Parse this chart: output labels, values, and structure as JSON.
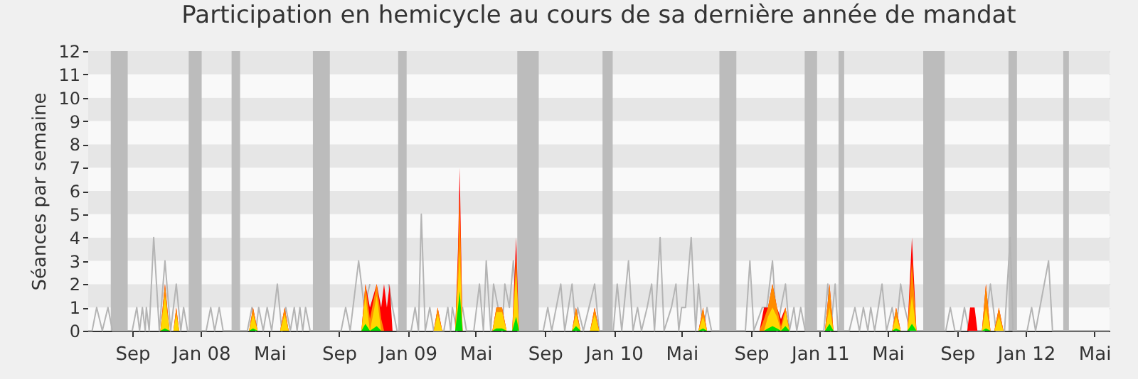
{
  "chart_data": {
    "type": "area",
    "title": "Participation en hemicycle au cours de sa dernière année de mandat",
    "ylabel": "Séances par semaine",
    "xlim": [
      "2007-06-15",
      "2012-05-28"
    ],
    "xticks": [
      {
        "value": "2007-09-01",
        "label": "Sep"
      },
      {
        "value": "2008-01-01",
        "label": "Jan 08"
      },
      {
        "value": "2008-05-01",
        "label": "Mai"
      },
      {
        "value": "2008-09-01",
        "label": "Sep"
      },
      {
        "value": "2009-01-01",
        "label": "Jan 09"
      },
      {
        "value": "2009-05-01",
        "label": "Mai"
      },
      {
        "value": "2009-09-01",
        "label": "Sep"
      },
      {
        "value": "2010-01-01",
        "label": "Jan 10"
      },
      {
        "value": "2010-05-01",
        "label": "Mai"
      },
      {
        "value": "2010-09-01",
        "label": "Sep"
      },
      {
        "value": "2011-01-01",
        "label": "Jan 11"
      },
      {
        "value": "2011-05-01",
        "label": "Mai"
      },
      {
        "value": "2011-09-01",
        "label": "Sep"
      },
      {
        "value": "2012-01-01",
        "label": "Jan 12"
      },
      {
        "value": "2012-05-01",
        "label": "Mai"
      }
    ],
    "ylim": [
      0,
      12
    ],
    "yticks": [
      0,
      1,
      2,
      3,
      4,
      5,
      6,
      7,
      8,
      9,
      10,
      11,
      12
    ],
    "grid": "y",
    "bands": [
      {
        "axis": "x",
        "from": "2007-07-25",
        "to": "2007-08-24",
        "color": "#bcbcbc"
      },
      {
        "axis": "x",
        "from": "2007-12-10",
        "to": "2008-01-02",
        "color": "#bcbcbc"
      },
      {
        "axis": "x",
        "from": "2008-02-24",
        "to": "2008-03-10",
        "color": "#bcbcbc"
      },
      {
        "axis": "x",
        "from": "2008-07-17",
        "to": "2008-08-16",
        "color": "#bcbcbc"
      },
      {
        "axis": "x",
        "from": "2008-12-15",
        "to": "2008-12-30",
        "color": "#bcbcbc"
      },
      {
        "axis": "x",
        "from": "2009-07-14",
        "to": "2009-08-21",
        "color": "#bcbcbc"
      },
      {
        "axis": "x",
        "from": "2009-12-12",
        "to": "2009-12-30",
        "color": "#bcbcbc"
      },
      {
        "axis": "x",
        "from": "2010-07-07",
        "to": "2010-08-06",
        "color": "#bcbcbc"
      },
      {
        "axis": "x",
        "from": "2010-12-05",
        "to": "2010-12-27",
        "color": "#bcbcbc"
      },
      {
        "axis": "x",
        "from": "2011-02-03",
        "to": "2011-02-13",
        "color": "#bcbcbc"
      },
      {
        "axis": "x",
        "from": "2011-07-03",
        "to": "2011-08-10",
        "color": "#bcbcbc"
      },
      {
        "axis": "x",
        "from": "2011-12-01",
        "to": "2011-12-16",
        "color": "#bcbcbc"
      },
      {
        "axis": "x",
        "from": "2012-03-07",
        "to": "2012-03-17",
        "color": "#bcbcbc"
      }
    ],
    "x": [
      "2007-10-21",
      "2007-10-29",
      "2007-11-06",
      "2007-11-13",
      "2007-11-18",
      "2007-11-23",
      "2008-03-26",
      "2008-04-02",
      "2008-04-10",
      "2008-05-20",
      "2008-05-28",
      "2008-06-04",
      "2008-10-11",
      "2008-10-18",
      "2008-10-26",
      "2008-11-07",
      "2008-11-15",
      "2008-11-20",
      "2008-11-25",
      "2008-11-30",
      "2008-12-05",
      "2009-02-16",
      "2009-02-23",
      "2009-03-03",
      "2009-03-26",
      "2009-03-31",
      "2009-04-03",
      "2009-04-08",
      "2009-05-31",
      "2009-06-07",
      "2009-06-12",
      "2009-06-17",
      "2009-06-25",
      "2009-07-05",
      "2009-07-12",
      "2009-07-17",
      "2009-10-19",
      "2009-10-26",
      "2009-11-03",
      "2009-11-20",
      "2009-11-28",
      "2009-12-06",
      "2010-05-31",
      "2010-06-08",
      "2010-06-15",
      "2010-09-16",
      "2010-09-24",
      "2010-10-01",
      "2010-10-09",
      "2010-10-17",
      "2010-10-24",
      "2010-11-01",
      "2010-11-08",
      "2011-01-10",
      "2011-01-18",
      "2011-01-25",
      "2011-05-09",
      "2011-05-16",
      "2011-05-24",
      "2011-06-05",
      "2011-06-13",
      "2011-06-21",
      "2011-09-19",
      "2011-09-24",
      "2011-10-02",
      "2011-10-07",
      "2011-10-15",
      "2011-10-22",
      "2011-10-30",
      "2011-11-06",
      "2011-11-14",
      "2011-11-22"
    ],
    "series": [
      {
        "type": "line",
        "color": "#b4b4b4",
        "x": [
          "2007-06-15",
          "2007-06-22",
          "2007-06-30",
          "2007-07-10",
          "2007-07-20",
          "2007-07-28",
          "2007-09-01",
          "2007-09-09",
          "2007-09-14",
          "2007-09-19",
          "2007-09-24",
          "2007-09-26",
          "2007-10-01",
          "2007-10-09",
          "2007-10-19",
          "2007-10-29",
          "2007-11-08",
          "2007-11-18",
          "2007-11-26",
          "2007-12-01",
          "2007-12-08",
          "2008-01-10",
          "2008-01-18",
          "2008-01-25",
          "2008-02-02",
          "2008-02-09",
          "2008-03-23",
          "2008-03-31",
          "2008-04-07",
          "2008-04-12",
          "2008-04-20",
          "2008-04-27",
          "2008-05-05",
          "2008-05-15",
          "2008-05-23",
          "2008-05-30",
          "2008-06-07",
          "2008-06-14",
          "2008-06-19",
          "2008-06-24",
          "2008-06-29",
          "2008-07-04",
          "2008-07-12",
          "2008-09-05",
          "2008-09-13",
          "2008-09-21",
          "2008-10-06",
          "2008-10-16",
          "2008-10-26",
          "2008-11-02",
          "2008-11-10",
          "2008-11-20",
          "2008-11-28",
          "2008-12-05",
          "2008-12-13",
          "2009-01-07",
          "2009-01-14",
          "2009-01-20",
          "2009-01-25",
          "2009-02-01",
          "2009-02-09",
          "2009-02-16",
          "2009-03-06",
          "2009-03-13",
          "2009-03-18",
          "2009-03-21",
          "2009-03-29",
          "2009-04-08",
          "2009-04-15",
          "2009-04-28",
          "2009-05-08",
          "2009-05-15",
          "2009-05-20",
          "2009-05-28",
          "2009-06-02",
          "2009-06-10",
          "2009-06-17",
          "2009-06-22",
          "2009-06-30",
          "2009-07-07",
          "2009-07-15",
          "2009-08-29",
          "2009-09-06",
          "2009-09-13",
          "2009-09-29",
          "2009-10-06",
          "2009-10-19",
          "2009-10-26",
          "2009-10-29",
          "2009-11-08",
          "2009-11-28",
          "2009-12-06",
          "2009-12-31",
          "2010-01-07",
          "2010-01-15",
          "2010-01-27",
          "2010-02-04",
          "2010-02-12",
          "2010-02-19",
          "2010-03-01",
          "2010-03-09",
          "2010-03-14",
          "2010-03-24",
          "2010-03-31",
          "2010-04-13",
          "2010-04-21",
          "2010-04-26",
          "2010-05-01",
          "2010-05-08",
          "2010-05-18",
          "2010-05-26",
          "2010-05-31",
          "2010-06-08",
          "2010-06-15",
          "2010-06-23",
          "2010-08-22",
          "2010-08-30",
          "2010-09-06",
          "2010-09-21",
          "2010-09-29",
          "2010-10-09",
          "2010-10-17",
          "2010-10-24",
          "2010-11-01",
          "2010-11-08",
          "2010-11-16",
          "2010-11-21",
          "2010-11-28",
          "2010-12-06",
          "2011-01-08",
          "2011-01-15",
          "2011-01-20",
          "2011-01-28",
          "2011-02-02",
          "2011-02-22",
          "2011-03-04",
          "2011-03-12",
          "2011-03-19",
          "2011-03-27",
          "2011-04-01",
          "2011-04-08",
          "2011-04-21",
          "2011-04-29",
          "2011-05-09",
          "2011-05-16",
          "2011-05-24",
          "2011-05-31",
          "2011-06-10",
          "2011-08-12",
          "2011-08-20",
          "2011-08-28",
          "2011-09-07",
          "2011-09-14",
          "2011-09-22",
          "2011-10-19",
          "2011-10-30",
          "2011-11-09",
          "2011-11-24",
          "2011-12-04",
          "2011-12-09",
          "2012-01-03",
          "2012-01-11",
          "2012-01-18",
          "2012-02-10",
          "2012-02-17",
          "2012-05-28"
        ],
        "values": [
          0,
          0,
          1,
          0,
          1,
          0,
          0,
          1,
          0,
          1,
          0,
          1,
          0,
          4,
          0,
          3,
          0,
          2,
          0,
          1,
          0,
          0,
          1,
          0,
          1,
          0,
          0,
          1,
          0,
          1,
          0,
          1,
          0,
          2,
          0,
          1,
          0,
          1,
          0,
          1,
          0,
          1,
          0,
          0,
          1,
          0,
          3,
          1,
          2,
          null,
          null,
          null,
          2,
          1,
          0,
          0,
          1,
          0,
          5,
          0,
          1,
          0,
          0,
          1,
          0,
          1,
          0,
          1,
          0,
          0,
          2,
          0,
          3,
          0,
          2,
          1,
          0,
          2,
          1,
          3,
          0,
          0,
          1,
          0,
          2,
          0,
          2,
          0,
          1,
          0,
          2,
          0,
          0,
          2,
          0,
          3,
          0,
          1,
          0,
          1,
          2,
          0,
          4,
          0,
          1,
          2,
          0,
          1,
          1,
          4,
          0,
          2,
          0,
          1,
          0,
          0,
          3,
          0,
          1,
          1,
          3,
          0,
          1,
          2,
          0,
          1,
          0,
          1,
          0,
          0,
          2,
          0,
          2,
          0,
          0,
          1,
          0,
          1,
          0,
          1,
          0,
          2,
          0,
          1,
          0,
          2,
          1,
          0,
          0,
          1,
          0,
          0,
          1,
          0,
          0,
          2,
          0,
          0,
          4,
          0,
          0,
          1,
          0,
          3,
          0,
          0
        ]
      },
      {
        "color": "#ff0000",
        "values": [
          0,
          2,
          0,
          0,
          1,
          0,
          0,
          1,
          0,
          0,
          1,
          0,
          0,
          2,
          1,
          2,
          1,
          2,
          1,
          2,
          0,
          0,
          1,
          0,
          0,
          3.5,
          7,
          0,
          0,
          1,
          1,
          1,
          0,
          0,
          4,
          0,
          0,
          1,
          0,
          0,
          1,
          0,
          0,
          1,
          0,
          0,
          1,
          1,
          2,
          1,
          0.5,
          1,
          0,
          0,
          2,
          0,
          0,
          1,
          0,
          0,
          4,
          0,
          0,
          1,
          1,
          0,
          0,
          2,
          0,
          0,
          1,
          0
        ]
      },
      {
        "color": "#ff8c00",
        "values": [
          0,
          2,
          0,
          0,
          1,
          0,
          0,
          1,
          0,
          0,
          1,
          0,
          0,
          2,
          0.5,
          2,
          0.5,
          0,
          0,
          0,
          0,
          0,
          1,
          0,
          0,
          3,
          5.8,
          0,
          0,
          1,
          1,
          1,
          0,
          0,
          3.2,
          0,
          0,
          1,
          0,
          0,
          1,
          0,
          0,
          1,
          0,
          0,
          0.5,
          1,
          2,
          1,
          0.2,
          1,
          0,
          0,
          2,
          0,
          0,
          1,
          0,
          0,
          3,
          0,
          0,
          0,
          0,
          0,
          0,
          2,
          0,
          0,
          1,
          0
        ]
      },
      {
        "color": "#ffd700",
        "values": [
          0,
          1.5,
          0,
          0,
          0.7,
          0,
          0,
          0.7,
          0,
          0,
          0.7,
          0,
          0,
          1.5,
          0,
          1.5,
          0,
          0,
          0,
          0,
          0,
          0,
          0.7,
          0,
          0,
          2,
          3.4,
          0,
          0,
          0.8,
          0.8,
          0.8,
          0,
          0,
          2.5,
          0,
          0,
          0.7,
          0,
          0,
          0.7,
          0,
          0,
          0.6,
          0,
          0,
          0,
          0.6,
          1,
          0.6,
          0,
          0.8,
          0,
          0,
          1,
          0,
          0,
          0.6,
          0,
          0,
          1.5,
          0,
          0,
          0,
          0,
          0,
          0,
          1,
          0,
          0,
          0.6,
          0
        ]
      },
      {
        "color": "#00e000",
        "values": [
          0,
          0.1,
          0,
          0,
          0,
          0,
          0,
          0.1,
          0,
          0,
          0,
          0,
          0,
          0.3,
          0,
          0.2,
          0,
          0,
          0,
          0,
          0,
          0,
          0,
          0,
          0,
          1,
          1.7,
          0,
          0,
          0.1,
          0.1,
          0.1,
          0,
          0,
          0.6,
          0,
          0,
          0.2,
          0,
          0,
          0,
          0,
          0,
          0.1,
          0,
          0,
          0,
          0.1,
          0.2,
          0.1,
          0,
          0.2,
          0,
          0,
          0.3,
          0,
          0,
          0.1,
          0,
          0,
          0.3,
          0,
          0,
          0,
          0,
          0,
          0,
          0.1,
          0,
          0,
          0,
          0
        ]
      }
    ]
  }
}
